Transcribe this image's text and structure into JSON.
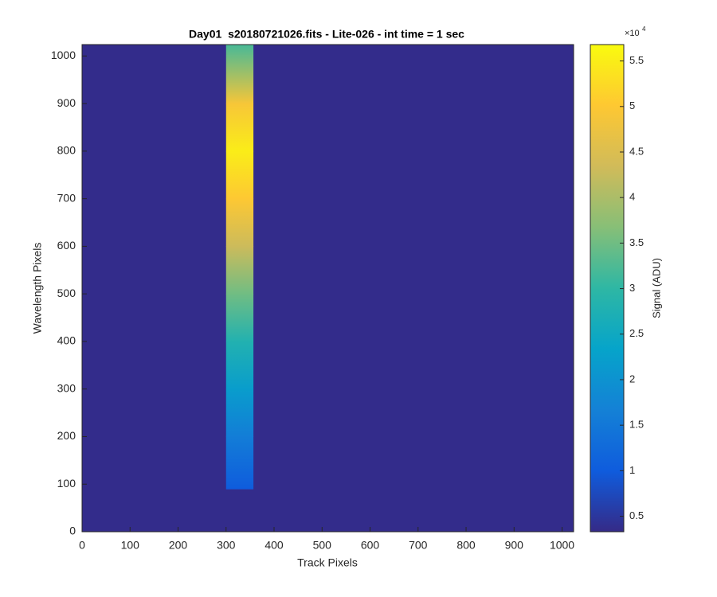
{
  "chart_data": {
    "type": "image",
    "title": "Day01  s20180721026.fits - Lite-026 - int time = 1 sec",
    "x_label": "Track Pixels",
    "y_label": "Wavelength Pixels",
    "xlim": [
      0,
      1024
    ],
    "ylim": [
      0,
      1024
    ],
    "xticks": [
      0,
      100,
      200,
      300,
      400,
      500,
      600,
      700,
      800,
      900,
      1000
    ],
    "yticks": [
      0,
      100,
      200,
      300,
      400,
      500,
      600,
      700,
      800,
      900,
      1000
    ],
    "colormap": "parula",
    "background_value": 0.36,
    "stripe": {
      "x_range": [
        300,
        357
      ],
      "y": [
        90,
        200,
        300,
        400,
        500,
        600,
        700,
        800,
        900,
        1024
      ],
      "values": [
        1.0,
        1.6,
        2.2,
        2.8,
        3.5,
        4.3,
        5.0,
        5.5,
        4.9,
        3.2
      ]
    },
    "colorbar": {
      "label": "Signal (ADU)",
      "multiplier": "×10",
      "exponent": "4",
      "clim": [
        0.33,
        5.68
      ],
      "ticks": [
        0.5,
        1,
        1.5,
        2,
        2.5,
        3,
        3.5,
        4,
        4.5,
        5,
        5.5
      ]
    }
  }
}
